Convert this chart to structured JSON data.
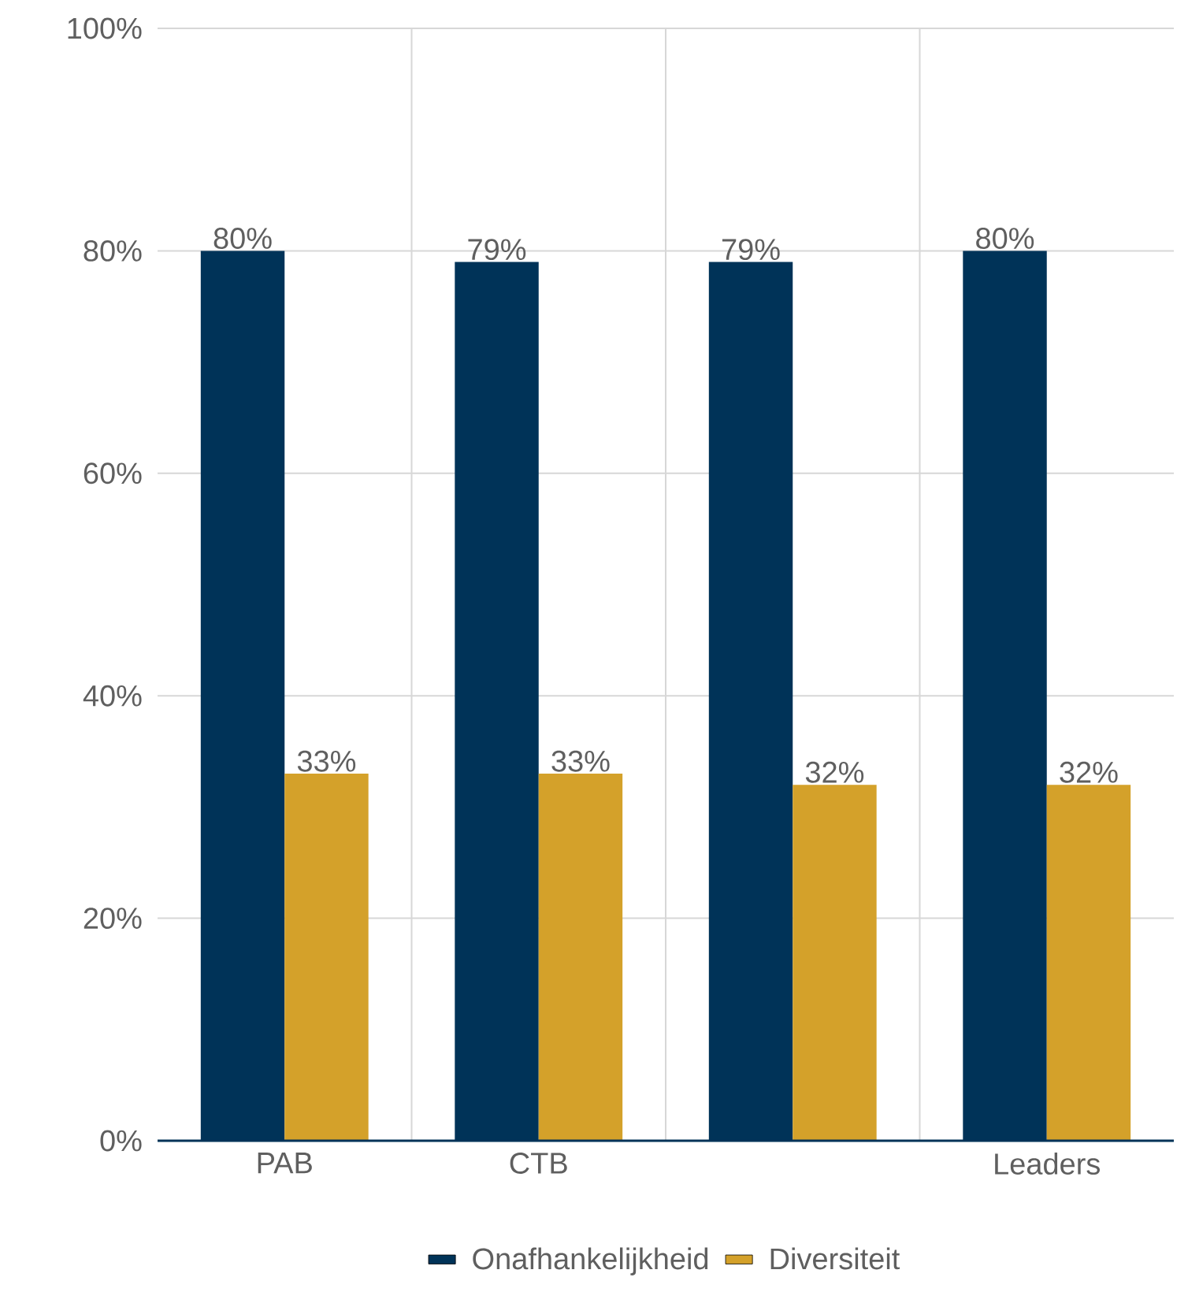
{
  "chart_data": {
    "type": "bar",
    "categories": [
      "PAB",
      "CTB",
      null,
      "Leaders"
    ],
    "series": [
      {
        "name": "Onafhankelijkheid",
        "color": "#003358",
        "values": [
          80,
          79,
          79,
          80
        ],
        "value_labels": [
          "80%",
          "79%",
          "79%",
          "80%"
        ]
      },
      {
        "name": "Diversiteit",
        "color": "#d4a12a",
        "values": [
          33,
          33,
          32,
          32
        ],
        "value_labels": [
          "33%",
          "33%",
          "32%",
          "32%"
        ]
      }
    ],
    "ylim": [
      0,
      100
    ],
    "yticks": [
      {
        "value": 0,
        "label": "0%"
      },
      {
        "value": 20,
        "label": "20%"
      },
      {
        "value": 40,
        "label": "40%"
      },
      {
        "value": 60,
        "label": "60%"
      },
      {
        "value": 80,
        "label": "80%"
      },
      {
        "value": 100,
        "label": "100%"
      }
    ],
    "grid": true,
    "legend": "bottom"
  }
}
